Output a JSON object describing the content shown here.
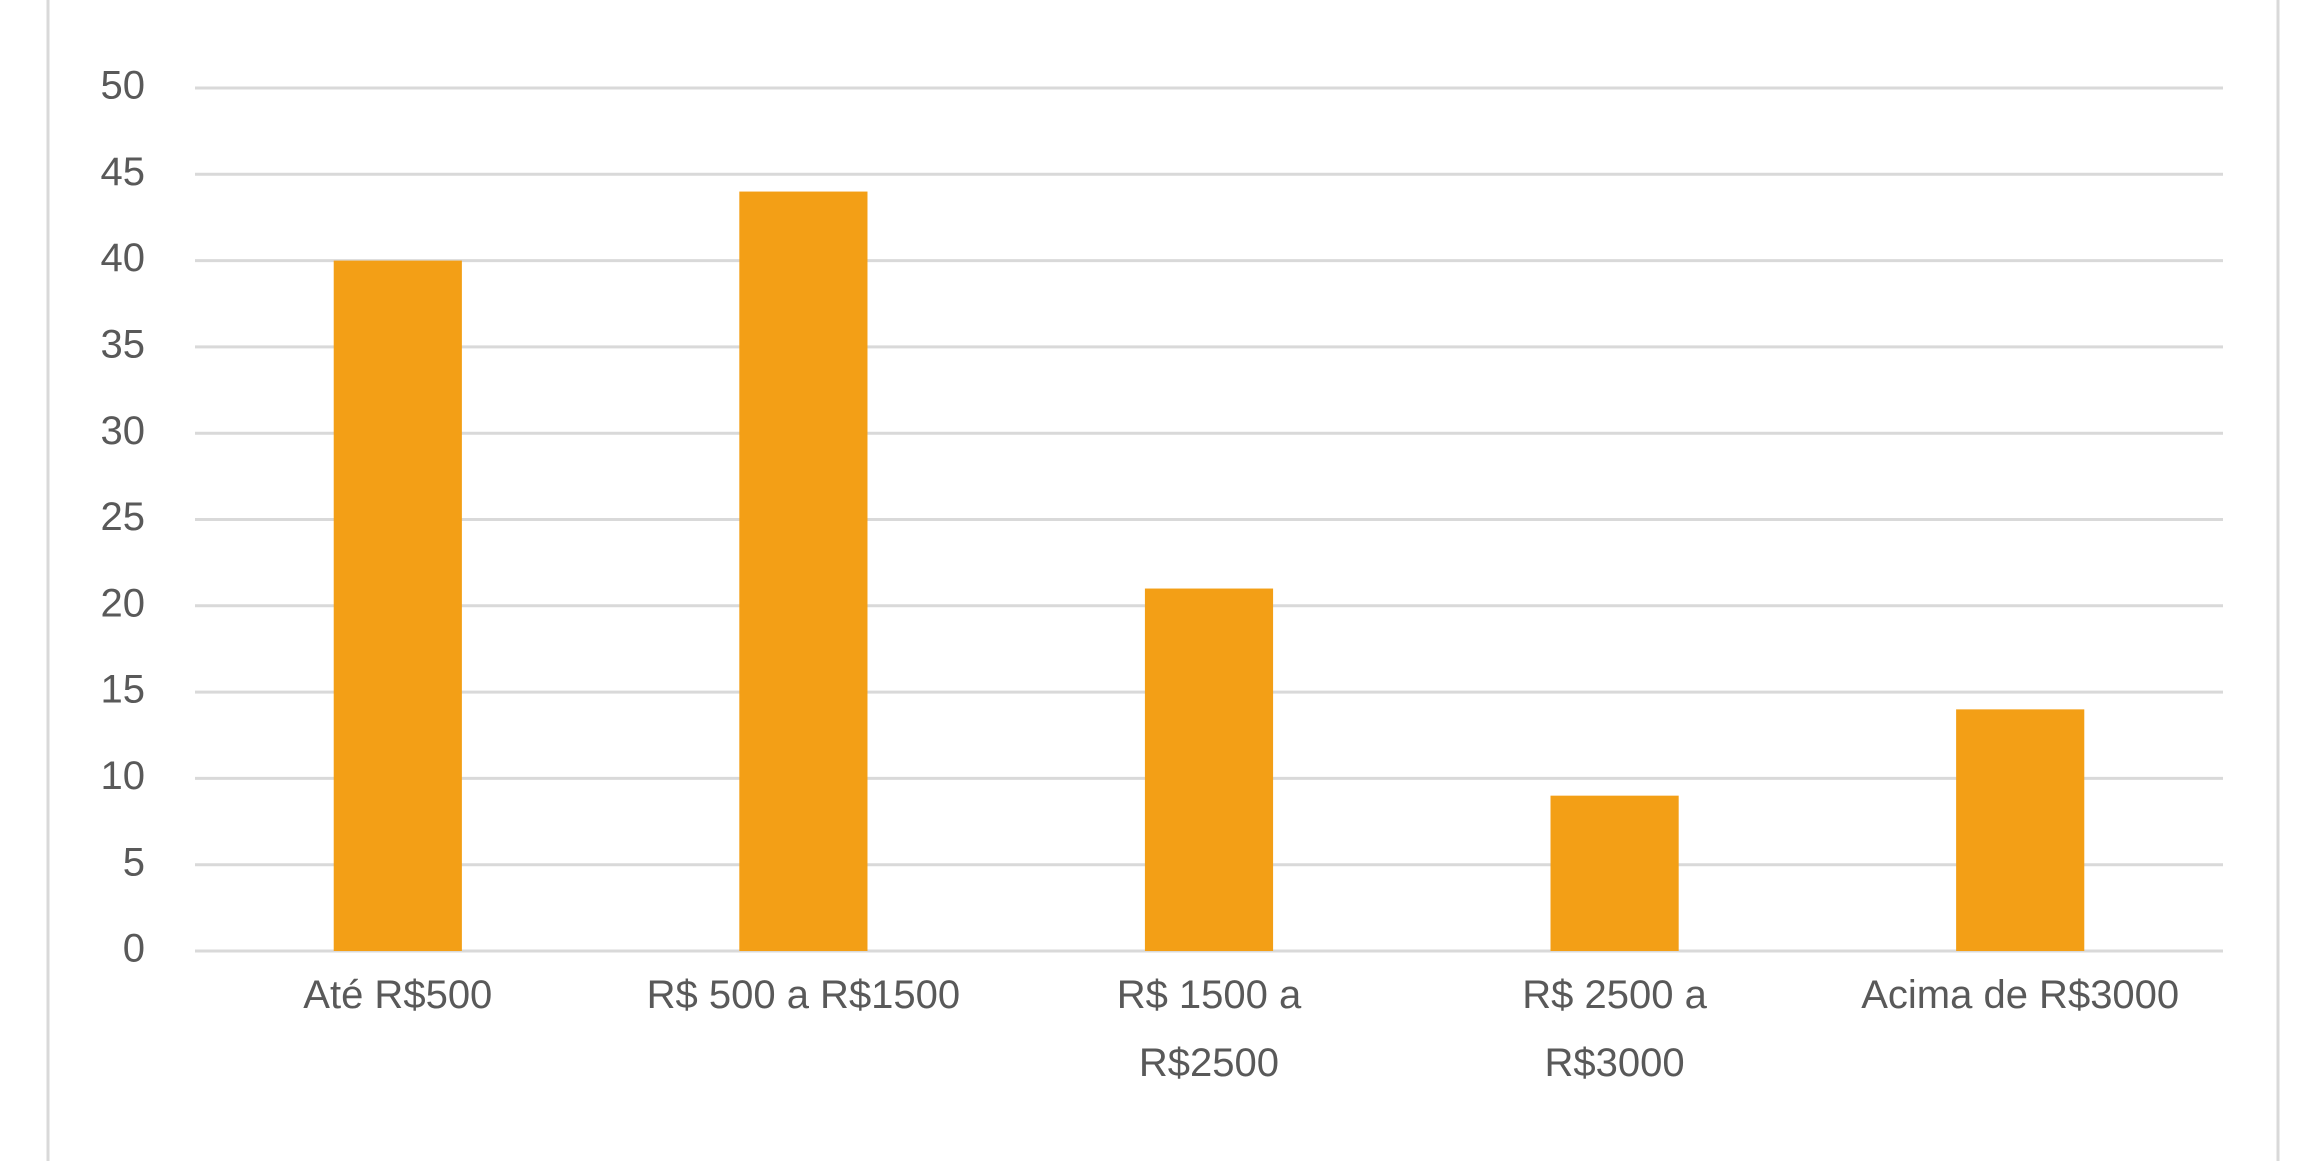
{
  "chart_data": {
    "type": "bar",
    "categories": [
      "Até R$500",
      "R$ 500 a R$1500",
      "R$ 1500 a\nR$2500",
      "R$ 2500 a\nR$3000",
      "Acima de R$3000"
    ],
    "values": [
      40,
      44,
      21,
      9,
      14
    ],
    "color": "#f39f16",
    "ylim": [
      0,
      50
    ],
    "yticks": [
      0,
      5,
      10,
      15,
      20,
      25,
      30,
      35,
      40,
      45,
      50
    ],
    "grid": true
  }
}
